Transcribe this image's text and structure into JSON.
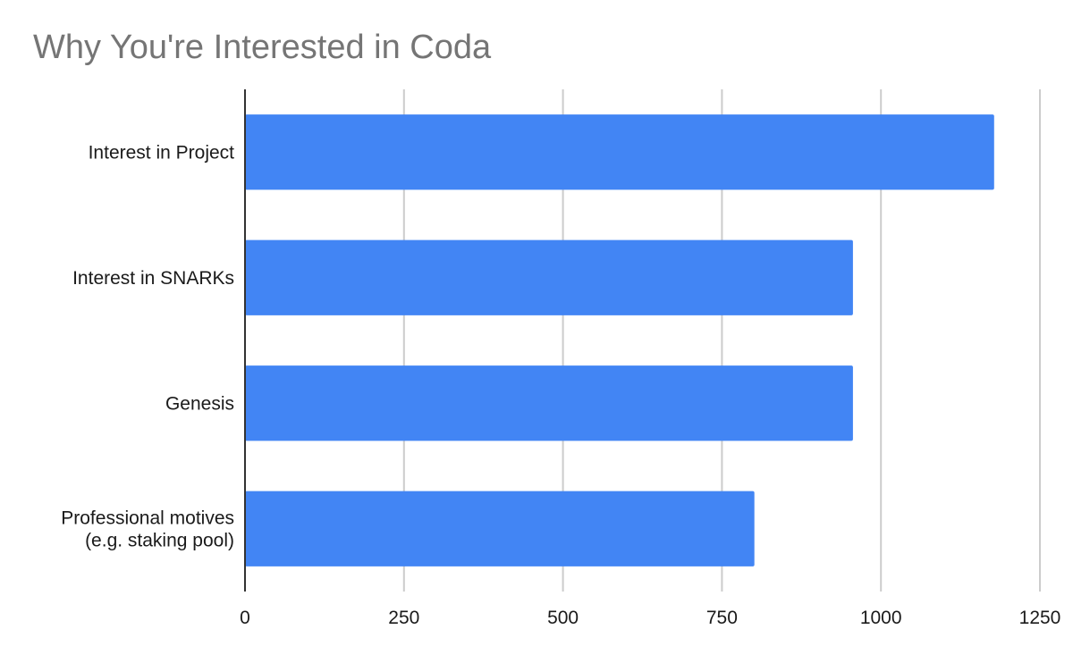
{
  "chart_data": {
    "type": "bar",
    "orientation": "horizontal",
    "title": "Why You're Interested in Coda",
    "xlabel": "",
    "ylabel": "",
    "categories": [
      [
        "Interest in Project"
      ],
      [
        "Interest in SNARKs"
      ],
      [
        "Genesis"
      ],
      [
        "Professional motives",
        "(e.g. staking pool)"
      ]
    ],
    "values": [
      1178,
      956,
      956,
      801
    ],
    "xlim": [
      0,
      1250
    ],
    "x_ticks": [
      0,
      250,
      500,
      750,
      1000,
      1250
    ],
    "grid": "vertical",
    "legend": "none",
    "bar_color": "#4285f4",
    "grid_color": "#cccccc",
    "axis_color": "#333333"
  }
}
